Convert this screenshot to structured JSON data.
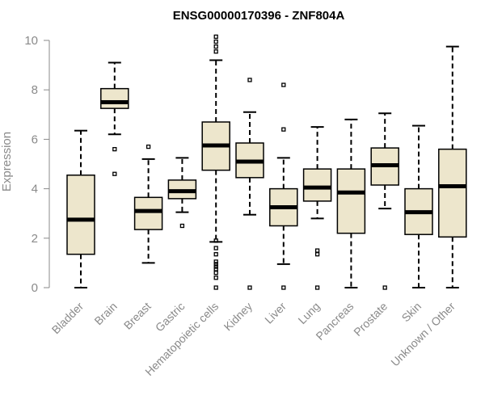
{
  "chart_data": {
    "type": "box",
    "title": "ENSG00000170396 - ZNF804A",
    "xlabel": "",
    "ylabel": "Expression",
    "ylim": [
      0,
      10.5
    ],
    "yticks": [
      0,
      2,
      4,
      6,
      8,
      10
    ],
    "grid": false,
    "categories": [
      "Bladder",
      "Brain",
      "Breast",
      "Gastric",
      "Hematopoietic cells",
      "Kidney",
      "Liver",
      "Lung",
      "Pancreas",
      "Prostate",
      "Skin",
      "Unknown / Other"
    ],
    "series": [
      {
        "name": "Bladder",
        "min": 0,
        "q1": 1.35,
        "median": 2.75,
        "q3": 4.55,
        "max": 6.35,
        "outliers": []
      },
      {
        "name": "Brain",
        "min": 6.2,
        "q1": 7.25,
        "median": 7.5,
        "q3": 8.05,
        "max": 9.1,
        "outliers": [
          5.6,
          4.6
        ]
      },
      {
        "name": "Breast",
        "min": 1.0,
        "q1": 2.35,
        "median": 3.1,
        "q3": 3.65,
        "max": 5.2,
        "outliers": [
          5.7
        ]
      },
      {
        "name": "Gastric",
        "min": 3.05,
        "q1": 3.6,
        "median": 3.9,
        "q3": 4.35,
        "max": 5.25,
        "outliers": [
          2.5
        ]
      },
      {
        "name": "Hematopoietic cells",
        "min": 1.85,
        "q1": 4.75,
        "median": 5.75,
        "q3": 6.7,
        "max": 9.2,
        "outliers": [
          10.15,
          9.95,
          9.75,
          9.55,
          1.9,
          1.6,
          1.35,
          1.05,
          0.95,
          0.85,
          0.75,
          0.6,
          0.4,
          0
        ]
      },
      {
        "name": "Kidney",
        "min": 2.95,
        "q1": 4.45,
        "median": 5.1,
        "q3": 5.85,
        "max": 7.1,
        "outliers": [
          8.4,
          0
        ]
      },
      {
        "name": "Liver",
        "min": 0.95,
        "q1": 2.5,
        "median": 3.25,
        "q3": 4.0,
        "max": 5.25,
        "outliers": [
          8.2,
          6.4,
          0
        ]
      },
      {
        "name": "Lung",
        "min": 2.8,
        "q1": 3.5,
        "median": 4.05,
        "q3": 4.8,
        "max": 6.5,
        "outliers": [
          1.5,
          1.35,
          0
        ]
      },
      {
        "name": "Pancreas",
        "min": 0,
        "q1": 2.2,
        "median": 3.85,
        "q3": 4.8,
        "max": 6.8,
        "outliers": []
      },
      {
        "name": "Prostate",
        "min": 3.2,
        "q1": 4.15,
        "median": 4.95,
        "q3": 5.65,
        "max": 7.05,
        "outliers": [
          0
        ]
      },
      {
        "name": "Skin",
        "min": 0,
        "q1": 2.15,
        "median": 3.05,
        "q3": 4.0,
        "max": 6.55,
        "outliers": []
      },
      {
        "name": "Unknown / Other",
        "min": 0,
        "q1": 2.05,
        "median": 4.1,
        "q3": 5.6,
        "max": 9.75,
        "outliers": []
      }
    ]
  }
}
